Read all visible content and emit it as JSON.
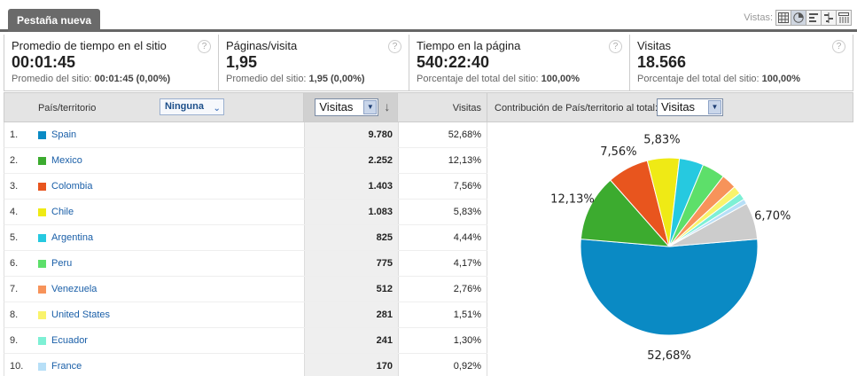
{
  "tab": {
    "label": "Pestaña nueva"
  },
  "views": {
    "label": "Vistas:"
  },
  "metrics": [
    {
      "title": "Promedio de tiempo en el sitio",
      "value": "00:01:45",
      "sub_prefix": "Promedio del sitio: ",
      "sub_bold": "00:01:45 (0,00%)"
    },
    {
      "title": "Páginas/visita",
      "value": "1,95",
      "sub_prefix": "Promedio del sitio: ",
      "sub_bold": "1,95 (0,00%)"
    },
    {
      "title": "Tiempo en la página",
      "value": "540:22:40",
      "sub_prefix": "Porcentaje del total del sitio: ",
      "sub_bold": "100,00%"
    },
    {
      "title": "Visitas",
      "value": "18.566",
      "sub_prefix": "Porcentaje del total del sitio: ",
      "sub_bold": "100,00%"
    }
  ],
  "help_icon": "?",
  "table": {
    "col_country": "País/territorio",
    "secondary_dim": "Ninguna",
    "sort_metric": "Visitas",
    "col_pct": "Visitas",
    "rows": [
      {
        "idx": "1.",
        "country": "Spain",
        "value": "9.780",
        "pct": "52,68%",
        "color": "#0a8ac4"
      },
      {
        "idx": "2.",
        "country": "Mexico",
        "value": "2.252",
        "pct": "12,13%",
        "color": "#3cab2f"
      },
      {
        "idx": "3.",
        "country": "Colombia",
        "value": "1.403",
        "pct": "7,56%",
        "color": "#e8551e"
      },
      {
        "idx": "4.",
        "country": "Chile",
        "value": "1.083",
        "pct": "5,83%",
        "color": "#efea15"
      },
      {
        "idx": "5.",
        "country": "Argentina",
        "value": "825",
        "pct": "4,44%",
        "color": "#26c9e0"
      },
      {
        "idx": "6.",
        "country": "Peru",
        "value": "775",
        "pct": "4,17%",
        "color": "#5ddf6a"
      },
      {
        "idx": "7.",
        "country": "Venezuela",
        "value": "512",
        "pct": "2,76%",
        "color": "#f7935a"
      },
      {
        "idx": "8.",
        "country": "United States",
        "value": "281",
        "pct": "1,51%",
        "color": "#f9f36b"
      },
      {
        "idx": "9.",
        "country": "Ecuador",
        "value": "241",
        "pct": "1,30%",
        "color": "#7ef0d5"
      },
      {
        "idx": "10.",
        "country": "France",
        "value": "170",
        "pct": "0,92%",
        "color": "#b7dff7"
      }
    ]
  },
  "chart_head": {
    "label": "Contribución de País/territorio al total:",
    "metric": "Visitas"
  },
  "chart_data": {
    "type": "pie",
    "labels": [
      "Spain",
      "Mexico",
      "Colombia",
      "Chile",
      "Argentina",
      "Peru",
      "Venezuela",
      "United States",
      "Ecuador",
      "France",
      ""
    ],
    "values": [
      52.68,
      12.13,
      7.56,
      5.83,
      4.44,
      4.17,
      2.76,
      1.51,
      1.3,
      0.92,
      6.7
    ],
    "colors": [
      "#0a8ac4",
      "#3cab2f",
      "#e8551e",
      "#efea15",
      "#26c9e0",
      "#5ddf6a",
      "#f7935a",
      "#f9f36b",
      "#7ef0d5",
      "#b7dff7",
      "#cccccc"
    ],
    "data_labels": [
      "52,68%",
      "12,13%",
      "7,56%",
      "5,83%",
      "",
      "",
      "",
      "",
      "",
      "",
      "6,70%"
    ]
  }
}
